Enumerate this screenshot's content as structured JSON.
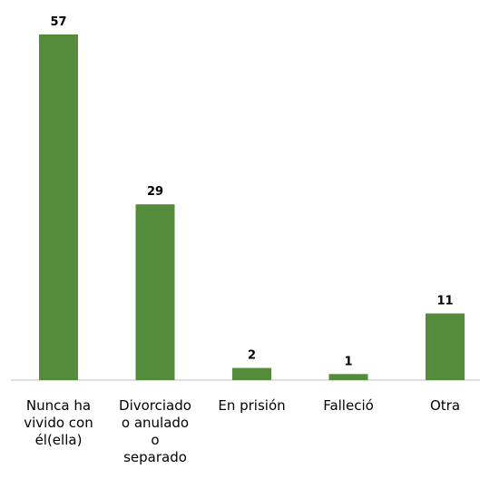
{
  "chart_data": {
    "type": "bar",
    "categories": [
      [
        "Nunca ha",
        "vivido con",
        "él(ella)"
      ],
      [
        "Divorciado",
        "o anulado",
        "o",
        "separado"
      ],
      [
        "En prisión"
      ],
      [
        "Falleció"
      ],
      [
        "Otra"
      ]
    ],
    "values": [
      57,
      29,
      2,
      1,
      11
    ],
    "data_labels": [
      "57",
      "29",
      "2",
      "1",
      "11"
    ],
    "bar_color": "#548c3c",
    "ylim": [
      0,
      57
    ],
    "grid": false,
    "legend": "none"
  }
}
